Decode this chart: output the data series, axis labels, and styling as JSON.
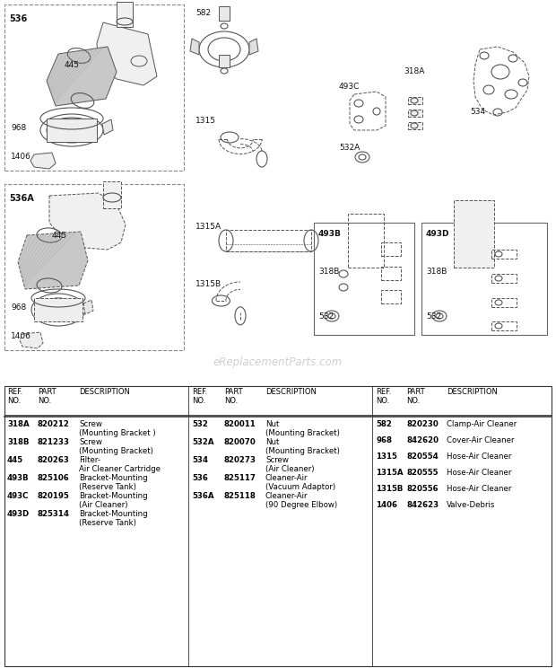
{
  "bg_color": "#ffffff",
  "watermark": "eReplacementParts.com",
  "col1_rows": [
    {
      "ref": "318A",
      "part": "820212",
      "desc": [
        "Screw",
        "(Mounting Bracket )"
      ]
    },
    {
      "ref": "318B",
      "part": "821233",
      "desc": [
        "Screw",
        "(Mounting Bracket)"
      ]
    },
    {
      "ref": "445",
      "part": "820263",
      "desc": [
        "Filter-",
        "Air Cleaner Cartridge"
      ]
    },
    {
      "ref": "493B",
      "part": "825106",
      "desc": [
        "Bracket-Mounting",
        "(Reserve Tank)"
      ]
    },
    {
      "ref": "493C",
      "part": "820195",
      "desc": [
        "Bracket-Mounting",
        "(Air Cleaner)"
      ]
    },
    {
      "ref": "493D",
      "part": "825314",
      "desc": [
        "Bracket-Mounting",
        "(Reserve Tank)"
      ]
    }
  ],
  "col2_rows": [
    {
      "ref": "532",
      "part": "820011",
      "desc": [
        "Nut",
        "(Mounting Bracket)"
      ]
    },
    {
      "ref": "532A",
      "part": "820070",
      "desc": [
        "Nut",
        "(Mounting Bracket)"
      ]
    },
    {
      "ref": "534",
      "part": "820273",
      "desc": [
        "Screw",
        "(Air Cleaner)"
      ]
    },
    {
      "ref": "536",
      "part": "825117",
      "desc": [
        "Cleaner-Air",
        "(Vacuum Adaptor)"
      ]
    },
    {
      "ref": "536A",
      "part": "825118",
      "desc": [
        "Cleaner-Air",
        "(90 Degree Elbow)"
      ]
    }
  ],
  "col3_rows": [
    {
      "ref": "582",
      "part": "820230",
      "desc": [
        "Clamp-Air Cleaner"
      ]
    },
    {
      "ref": "968",
      "part": "842620",
      "desc": [
        "Cover-Air Cleaner"
      ]
    },
    {
      "ref": "1315",
      "part": "820554",
      "desc": [
        "Hose-Air Cleaner"
      ]
    },
    {
      "ref": "1315A",
      "part": "820555",
      "desc": [
        "Hose-Air Cleaner"
      ]
    },
    {
      "ref": "1315B",
      "part": "820556",
      "desc": [
        "Hose-Air Cleaner"
      ]
    },
    {
      "ref": "1406",
      "part": "842623",
      "desc": [
        "Valve-Debris"
      ]
    }
  ]
}
